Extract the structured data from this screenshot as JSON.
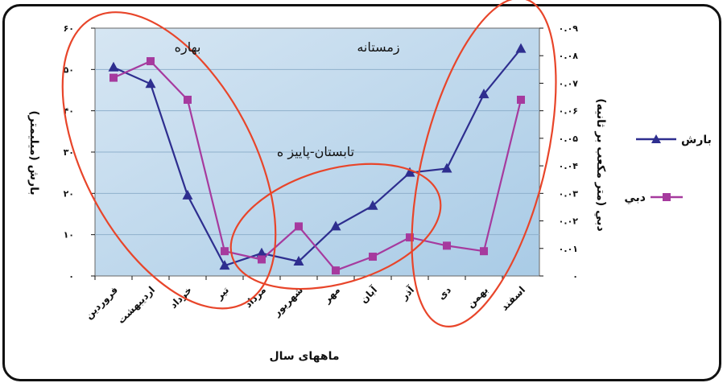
{
  "chart_data": {
    "type": "line",
    "categories": [
      "فروردین",
      "اردیبهشت",
      "خرداد",
      "تیر",
      "مرداد",
      "شهریور",
      "مهر",
      "آبان",
      "آذر",
      "دی",
      "بهمن",
      "اسفند"
    ],
    "series": [
      {
        "name": "بارش",
        "axis": "left",
        "marker": "triangle",
        "color": "#2e2e8f",
        "values": [
          50.5,
          46.5,
          19.5,
          2.5,
          5.5,
          3.5,
          12,
          17,
          25,
          26,
          44,
          55
        ]
      },
      {
        "name": "دبي",
        "axis": "right",
        "marker": "square",
        "color": "#a63a9e",
        "values": [
          0.072,
          0.078,
          0.064,
          0.009,
          0.006,
          0.018,
          0.002,
          0.007,
          0.014,
          0.011,
          0.009,
          0.064
        ]
      }
    ],
    "ylabel": "بارش (میلیمتر)",
    "y2label": "دبي (متر مكعب بر ثانیه)",
    "xlabel": "ماههای سال",
    "ylim": [
      0,
      60
    ],
    "y2lim": [
      0,
      0.09
    ],
    "yticks": [
      "۰",
      "۱۰",
      "۲۰",
      "۳۰",
      "۴۰",
      "۵۰",
      "۶۰"
    ],
    "y2ticks": [
      "۰",
      "۰.۰۱",
      "۰.۰۲",
      "۰.۰۳",
      "۰.۰۴",
      "۰.۰۵",
      "۰.۰۶",
      "۰.۰۷",
      "۰.۰۸",
      "۰.۰۹"
    ],
    "annotations": [
      "بهاره",
      "زمستانه",
      "تابستان-پاییز ه"
    ],
    "legend_position": "right",
    "plot_background": "#a9cbe6",
    "highlight_color": "#e8452a"
  }
}
